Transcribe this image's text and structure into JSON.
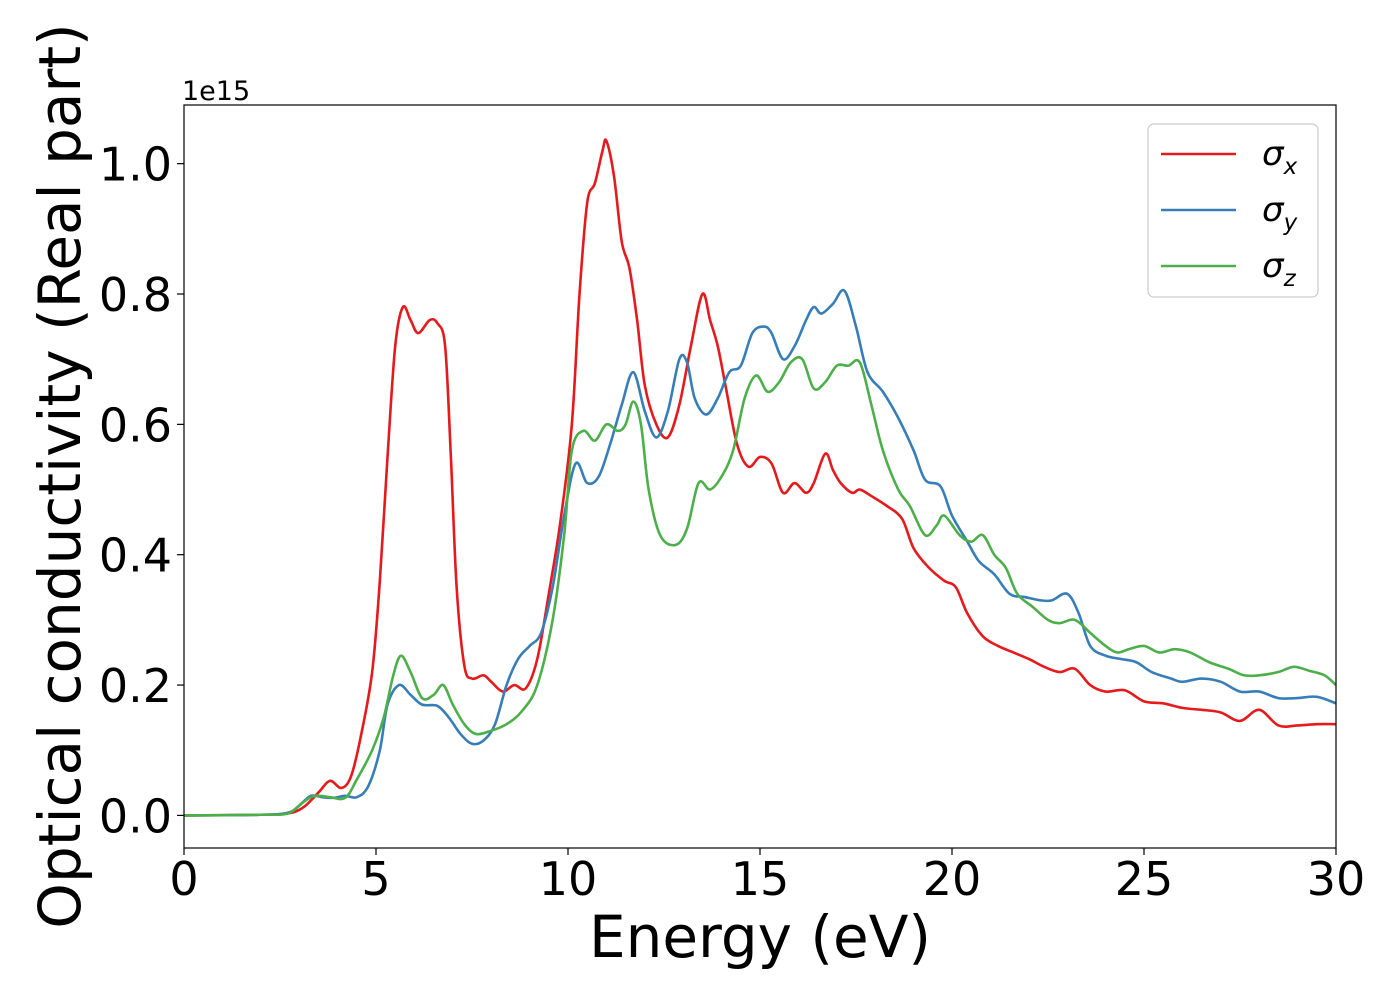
{
  "chart_data": {
    "type": "line",
    "xlabel": "Energy (eV)",
    "ylabel": "Optical conductivity (Real part)",
    "y_offset_text": "1e15",
    "xlim": [
      0,
      30
    ],
    "ylim": [
      -0.05,
      1.09
    ],
    "x_ticks": [
      0,
      5,
      10,
      15,
      20,
      25,
      30
    ],
    "x_tick_labels": [
      "0",
      "5",
      "10",
      "15",
      "20",
      "25",
      "30"
    ],
    "y_ticks": [
      0.0,
      0.2,
      0.4,
      0.6,
      0.8,
      1.0
    ],
    "y_tick_labels": [
      "0.0",
      "0.2",
      "0.4",
      "0.6",
      "0.8",
      "1.0"
    ],
    "grid": false,
    "legend_position": "top-right",
    "series": [
      {
        "name": "σx",
        "symbol": "σ",
        "subscript": "x",
        "color": "#e41a1c",
        "points": [
          [
            0,
            0.0
          ],
          [
            2,
            0.001
          ],
          [
            2.7,
            0.003
          ],
          [
            3.1,
            0.012
          ],
          [
            3.5,
            0.035
          ],
          [
            3.8,
            0.053
          ],
          [
            4.1,
            0.042
          ],
          [
            4.35,
            0.06
          ],
          [
            4.6,
            0.12
          ],
          [
            4.9,
            0.22
          ],
          [
            5.1,
            0.36
          ],
          [
            5.3,
            0.55
          ],
          [
            5.5,
            0.72
          ],
          [
            5.7,
            0.78
          ],
          [
            5.9,
            0.76
          ],
          [
            6.1,
            0.74
          ],
          [
            6.4,
            0.76
          ],
          [
            6.6,
            0.755
          ],
          [
            6.8,
            0.72
          ],
          [
            6.95,
            0.55
          ],
          [
            7.1,
            0.35
          ],
          [
            7.3,
            0.23
          ],
          [
            7.5,
            0.21
          ],
          [
            7.8,
            0.215
          ],
          [
            8.0,
            0.205
          ],
          [
            8.3,
            0.19
          ],
          [
            8.6,
            0.2
          ],
          [
            8.9,
            0.195
          ],
          [
            9.2,
            0.24
          ],
          [
            9.5,
            0.34
          ],
          [
            9.8,
            0.45
          ],
          [
            10.1,
            0.6
          ],
          [
            10.3,
            0.8
          ],
          [
            10.5,
            0.94
          ],
          [
            10.7,
            0.97
          ],
          [
            10.9,
            1.02
          ],
          [
            11.0,
            1.035
          ],
          [
            11.2,
            0.98
          ],
          [
            11.4,
            0.88
          ],
          [
            11.6,
            0.84
          ],
          [
            11.8,
            0.76
          ],
          [
            12.0,
            0.66
          ],
          [
            12.3,
            0.6
          ],
          [
            12.6,
            0.58
          ],
          [
            12.9,
            0.63
          ],
          [
            13.2,
            0.72
          ],
          [
            13.5,
            0.8
          ],
          [
            13.7,
            0.76
          ],
          [
            13.9,
            0.72
          ],
          [
            14.1,
            0.66
          ],
          [
            14.4,
            0.57
          ],
          [
            14.7,
            0.535
          ],
          [
            15.0,
            0.55
          ],
          [
            15.3,
            0.54
          ],
          [
            15.6,
            0.495
          ],
          [
            15.9,
            0.51
          ],
          [
            16.2,
            0.495
          ],
          [
            16.4,
            0.51
          ],
          [
            16.7,
            0.555
          ],
          [
            16.9,
            0.53
          ],
          [
            17.1,
            0.51
          ],
          [
            17.4,
            0.495
          ],
          [
            17.6,
            0.5
          ],
          [
            17.9,
            0.49
          ],
          [
            18.3,
            0.475
          ],
          [
            18.7,
            0.455
          ],
          [
            19.0,
            0.41
          ],
          [
            19.4,
            0.38
          ],
          [
            19.8,
            0.36
          ],
          [
            20.1,
            0.35
          ],
          [
            20.4,
            0.31
          ],
          [
            20.8,
            0.275
          ],
          [
            21.2,
            0.26
          ],
          [
            21.6,
            0.25
          ],
          [
            22.0,
            0.24
          ],
          [
            22.4,
            0.228
          ],
          [
            22.8,
            0.22
          ],
          [
            23.2,
            0.225
          ],
          [
            23.6,
            0.2
          ],
          [
            24.0,
            0.19
          ],
          [
            24.5,
            0.192
          ],
          [
            25.0,
            0.175
          ],
          [
            25.5,
            0.172
          ],
          [
            26.0,
            0.165
          ],
          [
            26.5,
            0.162
          ],
          [
            27.0,
            0.158
          ],
          [
            27.5,
            0.145
          ],
          [
            28.0,
            0.162
          ],
          [
            28.5,
            0.138
          ],
          [
            29.0,
            0.138
          ],
          [
            29.5,
            0.14
          ],
          [
            30.0,
            0.14
          ]
        ]
      },
      {
        "name": "σy",
        "symbol": "σ",
        "subscript": "y",
        "color": "#377eb8",
        "points": [
          [
            0,
            0.0
          ],
          [
            2,
            0.001
          ],
          [
            2.7,
            0.004
          ],
          [
            3.0,
            0.015
          ],
          [
            3.3,
            0.03
          ],
          [
            3.6,
            0.028
          ],
          [
            3.9,
            0.027
          ],
          [
            4.2,
            0.03
          ],
          [
            4.5,
            0.028
          ],
          [
            4.8,
            0.045
          ],
          [
            5.1,
            0.1
          ],
          [
            5.3,
            0.17
          ],
          [
            5.6,
            0.2
          ],
          [
            5.9,
            0.185
          ],
          [
            6.2,
            0.17
          ],
          [
            6.6,
            0.168
          ],
          [
            6.9,
            0.15
          ],
          [
            7.2,
            0.125
          ],
          [
            7.5,
            0.11
          ],
          [
            7.8,
            0.115
          ],
          [
            8.1,
            0.14
          ],
          [
            8.4,
            0.2
          ],
          [
            8.7,
            0.24
          ],
          [
            9.0,
            0.26
          ],
          [
            9.3,
            0.28
          ],
          [
            9.6,
            0.35
          ],
          [
            9.9,
            0.46
          ],
          [
            10.2,
            0.54
          ],
          [
            10.5,
            0.51
          ],
          [
            10.8,
            0.52
          ],
          [
            11.1,
            0.57
          ],
          [
            11.4,
            0.63
          ],
          [
            11.7,
            0.68
          ],
          [
            12.0,
            0.62
          ],
          [
            12.3,
            0.58
          ],
          [
            12.6,
            0.62
          ],
          [
            12.9,
            0.7
          ],
          [
            13.1,
            0.695
          ],
          [
            13.3,
            0.64
          ],
          [
            13.6,
            0.615
          ],
          [
            13.9,
            0.64
          ],
          [
            14.2,
            0.68
          ],
          [
            14.5,
            0.69
          ],
          [
            14.8,
            0.74
          ],
          [
            15.1,
            0.75
          ],
          [
            15.3,
            0.74
          ],
          [
            15.6,
            0.7
          ],
          [
            15.9,
            0.72
          ],
          [
            16.2,
            0.76
          ],
          [
            16.4,
            0.78
          ],
          [
            16.6,
            0.77
          ],
          [
            16.9,
            0.785
          ],
          [
            17.2,
            0.805
          ],
          [
            17.5,
            0.75
          ],
          [
            17.8,
            0.68
          ],
          [
            18.2,
            0.65
          ],
          [
            18.6,
            0.61
          ],
          [
            19.0,
            0.56
          ],
          [
            19.3,
            0.515
          ],
          [
            19.7,
            0.505
          ],
          [
            20.0,
            0.46
          ],
          [
            20.4,
            0.42
          ],
          [
            20.7,
            0.39
          ],
          [
            21.1,
            0.37
          ],
          [
            21.5,
            0.34
          ],
          [
            21.9,
            0.335
          ],
          [
            22.3,
            0.33
          ],
          [
            22.6,
            0.33
          ],
          [
            23.0,
            0.34
          ],
          [
            23.3,
            0.31
          ],
          [
            23.6,
            0.26
          ],
          [
            24.0,
            0.245
          ],
          [
            24.4,
            0.24
          ],
          [
            24.8,
            0.235
          ],
          [
            25.2,
            0.22
          ],
          [
            25.7,
            0.21
          ],
          [
            26.0,
            0.205
          ],
          [
            26.5,
            0.21
          ],
          [
            27.0,
            0.205
          ],
          [
            27.5,
            0.19
          ],
          [
            28.0,
            0.19
          ],
          [
            28.5,
            0.18
          ],
          [
            29.0,
            0.18
          ],
          [
            29.5,
            0.182
          ],
          [
            30.0,
            0.172
          ]
        ]
      },
      {
        "name": "σz",
        "symbol": "σ",
        "subscript": "z",
        "color": "#4daf4a",
        "points": [
          [
            0,
            0.0
          ],
          [
            2,
            0.001
          ],
          [
            2.7,
            0.003
          ],
          [
            3.1,
            0.02
          ],
          [
            3.4,
            0.03
          ],
          [
            3.8,
            0.028
          ],
          [
            4.2,
            0.027
          ],
          [
            4.5,
            0.055
          ],
          [
            4.9,
            0.1
          ],
          [
            5.2,
            0.15
          ],
          [
            5.45,
            0.215
          ],
          [
            5.65,
            0.245
          ],
          [
            5.9,
            0.22
          ],
          [
            6.2,
            0.18
          ],
          [
            6.5,
            0.185
          ],
          [
            6.75,
            0.2
          ],
          [
            7.0,
            0.17
          ],
          [
            7.3,
            0.14
          ],
          [
            7.6,
            0.125
          ],
          [
            8.0,
            0.13
          ],
          [
            8.4,
            0.14
          ],
          [
            8.8,
            0.16
          ],
          [
            9.2,
            0.2
          ],
          [
            9.6,
            0.3
          ],
          [
            9.9,
            0.43
          ],
          [
            10.1,
            0.56
          ],
          [
            10.4,
            0.59
          ],
          [
            10.7,
            0.575
          ],
          [
            11.0,
            0.6
          ],
          [
            11.3,
            0.59
          ],
          [
            11.5,
            0.6
          ],
          [
            11.7,
            0.635
          ],
          [
            11.9,
            0.6
          ],
          [
            12.1,
            0.5
          ],
          [
            12.4,
            0.43
          ],
          [
            12.8,
            0.415
          ],
          [
            13.1,
            0.44
          ],
          [
            13.4,
            0.51
          ],
          [
            13.7,
            0.5
          ],
          [
            14.0,
            0.52
          ],
          [
            14.3,
            0.56
          ],
          [
            14.6,
            0.64
          ],
          [
            14.9,
            0.675
          ],
          [
            15.2,
            0.65
          ],
          [
            15.5,
            0.665
          ],
          [
            15.8,
            0.695
          ],
          [
            16.1,
            0.7
          ],
          [
            16.4,
            0.655
          ],
          [
            16.7,
            0.665
          ],
          [
            17.0,
            0.69
          ],
          [
            17.3,
            0.69
          ],
          [
            17.6,
            0.695
          ],
          [
            17.9,
            0.63
          ],
          [
            18.2,
            0.56
          ],
          [
            18.6,
            0.5
          ],
          [
            18.9,
            0.475
          ],
          [
            19.3,
            0.43
          ],
          [
            19.6,
            0.445
          ],
          [
            19.8,
            0.46
          ],
          [
            20.2,
            0.43
          ],
          [
            20.5,
            0.42
          ],
          [
            20.8,
            0.43
          ],
          [
            21.1,
            0.4
          ],
          [
            21.4,
            0.38
          ],
          [
            21.7,
            0.34
          ],
          [
            22.1,
            0.32
          ],
          [
            22.5,
            0.3
          ],
          [
            22.8,
            0.295
          ],
          [
            23.2,
            0.3
          ],
          [
            23.6,
            0.28
          ],
          [
            24.0,
            0.26
          ],
          [
            24.3,
            0.25
          ],
          [
            24.6,
            0.255
          ],
          [
            25.0,
            0.26
          ],
          [
            25.4,
            0.25
          ],
          [
            25.8,
            0.255
          ],
          [
            26.2,
            0.25
          ],
          [
            26.7,
            0.235
          ],
          [
            27.2,
            0.225
          ],
          [
            27.6,
            0.215
          ],
          [
            28.0,
            0.215
          ],
          [
            28.5,
            0.22
          ],
          [
            28.9,
            0.228
          ],
          [
            29.3,
            0.222
          ],
          [
            29.7,
            0.215
          ],
          [
            30.0,
            0.2
          ]
        ]
      }
    ]
  }
}
